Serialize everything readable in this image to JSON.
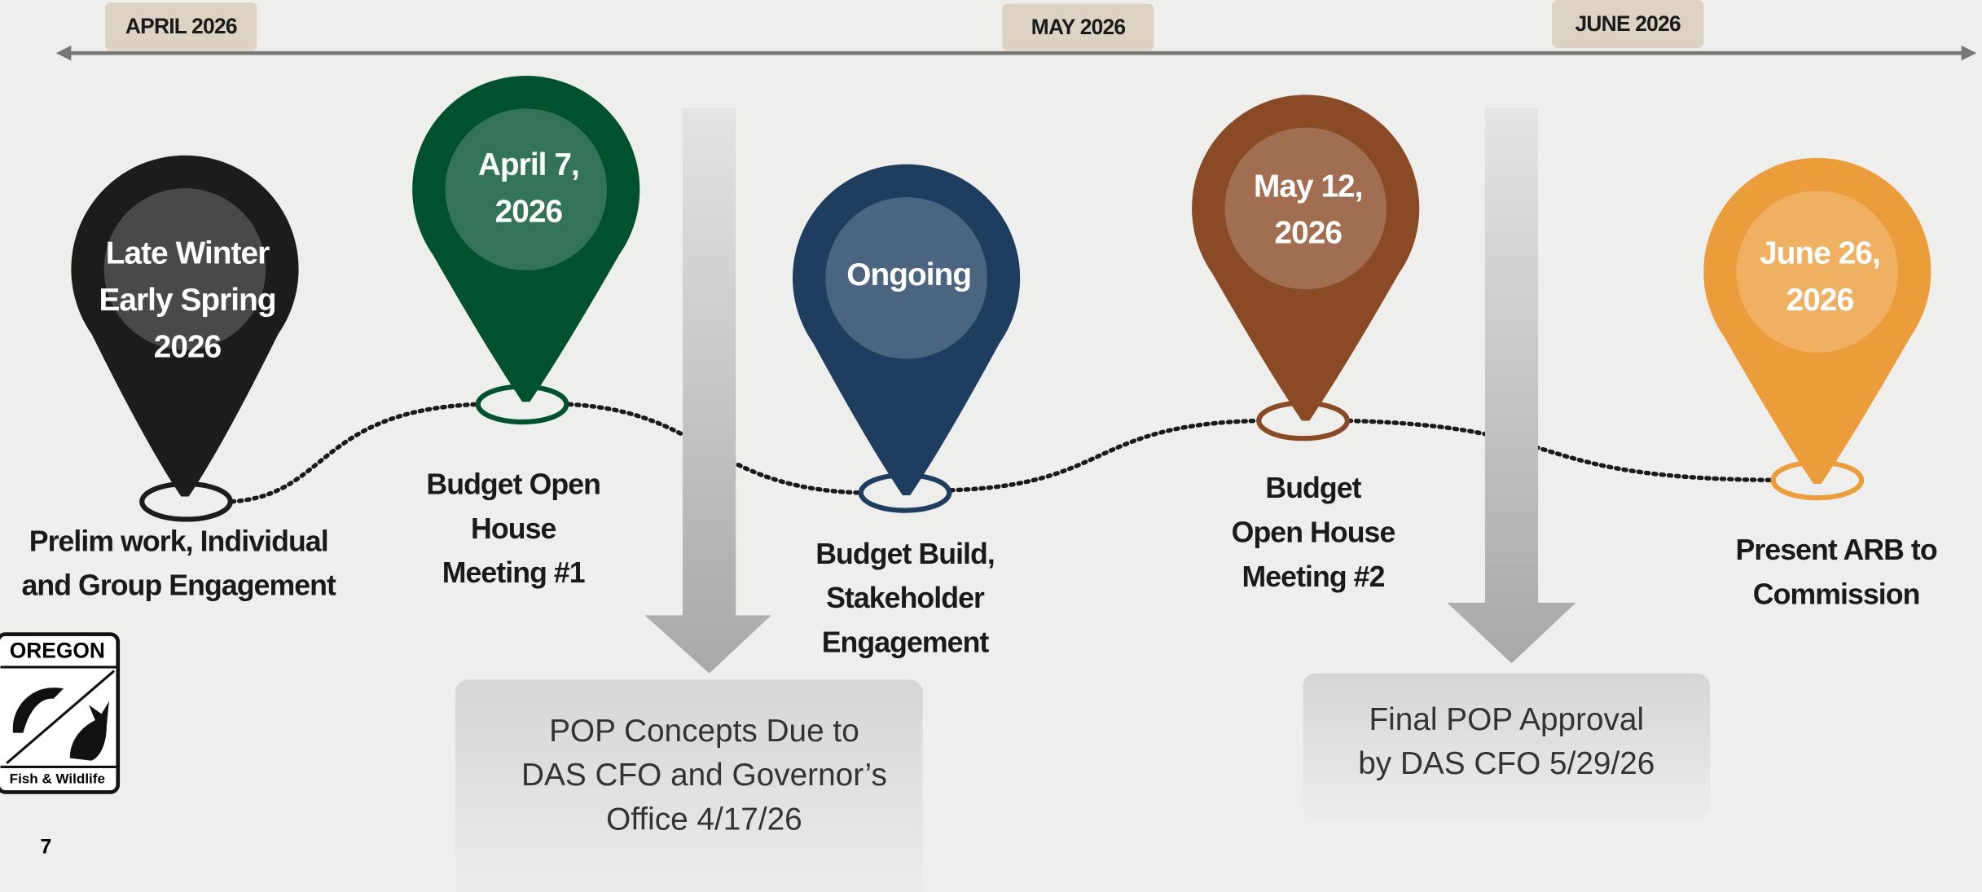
{
  "months": [
    "APRIL 2026",
    "MAY 2026",
    "JUNE 2026"
  ],
  "pins": [
    {
      "label": [
        "Late Winter",
        "Early Spring",
        "2026"
      ],
      "caption": [
        "Prelim work, Individual",
        "and Group Engagement"
      ],
      "color": "#1c1c1c"
    },
    {
      "label": [
        "April 7,",
        "2026"
      ],
      "caption": [
        "Budget Open",
        "House",
        "Meeting #1"
      ],
      "color": "#00512e"
    },
    {
      "label": [
        "Ongoing"
      ],
      "caption": [
        "Budget Build,",
        "Stakeholder",
        "Engagement"
      ],
      "color": "#1f3e5f"
    },
    {
      "label": [
        "May 12,",
        "2026"
      ],
      "caption": [
        "Budget",
        "Open House",
        "Meeting #2"
      ],
      "color": "#8b4a26"
    },
    {
      "label": [
        "June 26,",
        "2026"
      ],
      "caption": [
        "Present ARB to",
        "Commission"
      ],
      "color": "#eb9d3b"
    }
  ],
  "milestones": [
    {
      "text": [
        "POP Concepts Due to",
        "DAS CFO and Governor’s",
        "Office 4/17/26"
      ]
    },
    {
      "text": [
        "Final POP Approval",
        "by DAS CFO 5/29/26"
      ]
    }
  ],
  "logo": {
    "top": "OREGON",
    "bottom": "Fish & Wildlife"
  },
  "page_number": "7"
}
